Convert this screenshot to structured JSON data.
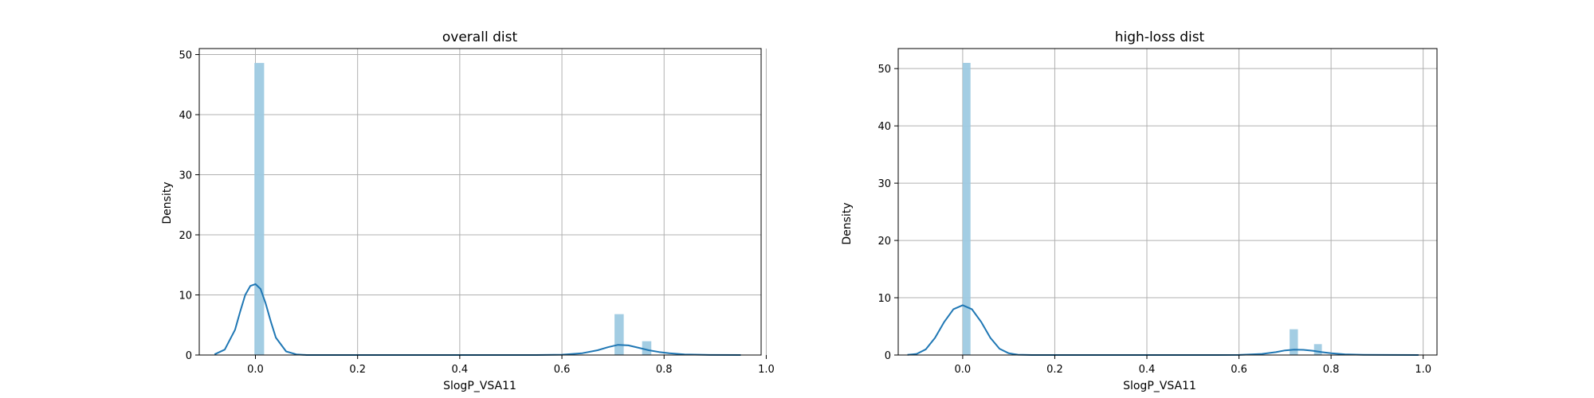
{
  "figure": {
    "background": "#ffffff"
  },
  "chart_data": [
    {
      "type": "histogram",
      "title": "overall dist",
      "xlabel": "SlogP_VSA11",
      "ylabel": "Density",
      "xlim": [
        -0.11,
        0.99
      ],
      "ylim": [
        0,
        51
      ],
      "xticks": [
        0.0,
        0.2,
        0.4,
        0.6,
        0.8,
        1.0
      ],
      "xtick_labels": [
        "0.0",
        "0.2",
        "0.4",
        "0.6",
        "0.8",
        "1.0"
      ],
      "yticks": [
        0,
        10,
        20,
        30,
        40,
        50
      ],
      "ytick_labels": [
        "0",
        "10",
        "20",
        "30",
        "40",
        "50"
      ],
      "grid": true,
      "bar_color": "#9ecae1",
      "line_color": "#1f77b4",
      "bars": [
        {
          "x0": -0.002,
          "x1": 0.017,
          "height": 48.6
        },
        {
          "x0": 0.703,
          "x1": 0.721,
          "height": 6.8
        },
        {
          "x0": 0.757,
          "x1": 0.775,
          "height": 2.3
        }
      ],
      "kde": {
        "x": [
          -0.08,
          -0.06,
          -0.04,
          -0.03,
          -0.02,
          -0.01,
          0.0,
          0.01,
          0.02,
          0.03,
          0.04,
          0.06,
          0.08,
          0.1,
          0.2,
          0.4,
          0.55,
          0.6,
          0.64,
          0.67,
          0.69,
          0.71,
          0.73,
          0.75,
          0.77,
          0.79,
          0.81,
          0.84,
          0.88,
          0.95
        ],
        "y": [
          0.1,
          0.9,
          4.2,
          7.2,
          10.0,
          11.5,
          11.8,
          11.0,
          8.6,
          5.6,
          2.9,
          0.6,
          0.1,
          0.0,
          0.0,
          0.0,
          0.0,
          0.05,
          0.3,
          0.8,
          1.3,
          1.7,
          1.6,
          1.2,
          0.8,
          0.5,
          0.3,
          0.1,
          0.03,
          0.0
        ]
      }
    },
    {
      "type": "histogram",
      "title": "high-loss dist",
      "xlabel": "SlogP_VSA11",
      "ylabel": "Density",
      "xlim": [
        -0.14,
        1.03
      ],
      "ylim": [
        0,
        53.5
      ],
      "xticks": [
        0.0,
        0.2,
        0.4,
        0.6,
        0.8,
        1.0
      ],
      "xtick_labels": [
        "0.0",
        "0.2",
        "0.4",
        "0.6",
        "0.8",
        "1.0"
      ],
      "yticks": [
        0,
        10,
        20,
        30,
        40,
        50
      ],
      "ytick_labels": [
        "0",
        "10",
        "20",
        "30",
        "40",
        "50"
      ],
      "grid": true,
      "bar_color": "#9ecae1",
      "line_color": "#1f77b4",
      "bars": [
        {
          "x0": 0.0,
          "x1": 0.017,
          "height": 51.0
        },
        {
          "x0": 0.71,
          "x1": 0.728,
          "height": 4.5
        },
        {
          "x0": 0.763,
          "x1": 0.78,
          "height": 1.9
        }
      ],
      "kde": {
        "x": [
          -0.12,
          -0.1,
          -0.08,
          -0.06,
          -0.04,
          -0.02,
          0.0,
          0.02,
          0.04,
          0.06,
          0.08,
          0.1,
          0.12,
          0.15,
          0.2,
          0.4,
          0.55,
          0.6,
          0.65,
          0.68,
          0.7,
          0.72,
          0.74,
          0.76,
          0.78,
          0.8,
          0.83,
          0.87,
          0.92,
          0.99
        ],
        "y": [
          0.03,
          0.2,
          1.0,
          3.0,
          5.8,
          8.0,
          8.7,
          8.0,
          5.8,
          3.0,
          1.1,
          0.3,
          0.06,
          0.0,
          0.0,
          0.0,
          0.0,
          0.02,
          0.2,
          0.5,
          0.8,
          0.95,
          0.9,
          0.75,
          0.5,
          0.3,
          0.12,
          0.04,
          0.01,
          0.0
        ]
      }
    }
  ]
}
